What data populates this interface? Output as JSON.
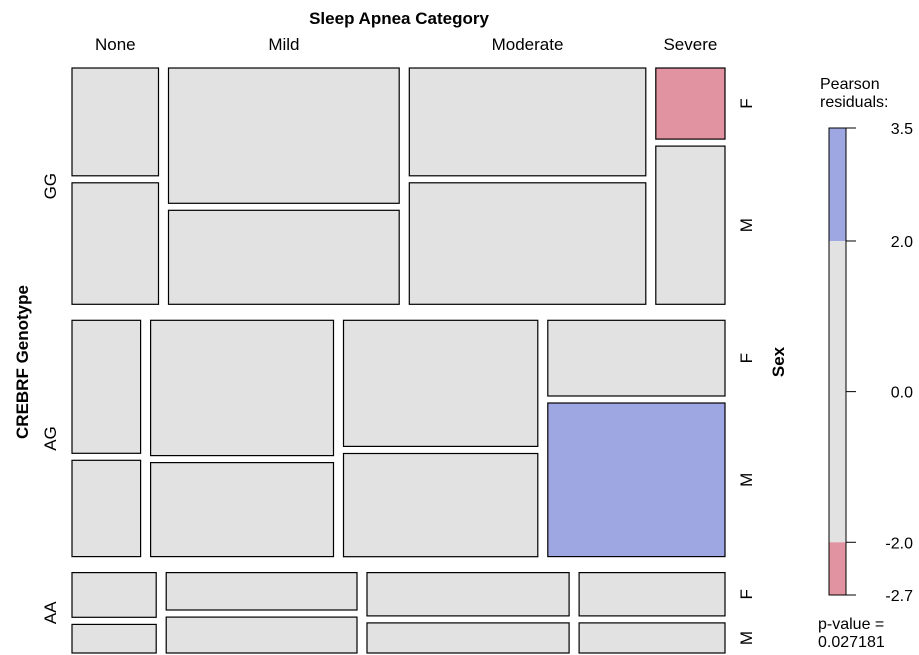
{
  "chart_data": {
    "type": "mosaic",
    "title": "Sleep Apnea Category",
    "row_variable": "CREBRF Genotype",
    "sex_variable": "Sex",
    "columns": [
      "None",
      "Mild",
      "Moderate",
      "Severe"
    ],
    "rows": [
      "GG",
      "AG",
      "AA"
    ],
    "sexes": [
      "F",
      "M"
    ],
    "row_proportions": [
      0.5,
      0.5,
      0.17
    ],
    "cells": [
      {
        "genotype": "GG",
        "columns": [
          0.15,
          0.4,
          0.41,
          0.12
        ],
        "f_fraction": [
          0.47,
          0.59,
          0.47,
          0.31
        ],
        "residual_F": [
          0,
          0,
          0,
          -2.7
        ],
        "residual_M": [
          0,
          0,
          0,
          0
        ]
      },
      {
        "genotype": "AG",
        "columns": [
          0.12,
          0.32,
          0.34,
          0.31
        ],
        "f_fraction": [
          0.58,
          0.59,
          0.55,
          0.33
        ],
        "residual_F": [
          0,
          0,
          0,
          0
        ],
        "residual_M": [
          0,
          0,
          0,
          3.5
        ]
      },
      {
        "genotype": "AA",
        "columns": [
          0.15,
          0.34,
          0.36,
          0.26
        ],
        "f_fraction": [
          0.61,
          0.51,
          0.59,
          0.59
        ],
        "residual_F": [
          0,
          0,
          0,
          0
        ],
        "residual_M": [
          0,
          0,
          0,
          0
        ]
      }
    ],
    "legend": {
      "title_line1": "Pearson",
      "title_line2": "residuals:",
      "range": [
        -2.7,
        3.5
      ],
      "ticks": [
        3.5,
        2.0,
        0.0,
        -2.0,
        -2.7
      ],
      "tick_labels": [
        "3.5",
        "2.0",
        "0.0",
        "-2.0",
        "-2.7"
      ],
      "shading_cutoffs": [
        -2.0,
        2.0
      ],
      "pvalue_label": "p-value =",
      "pvalue": "0.027181"
    },
    "colors": {
      "positive": "#9ea7e2",
      "negative": "#e293a1",
      "neutral": "#e2e2e2",
      "border": "#000000"
    }
  }
}
